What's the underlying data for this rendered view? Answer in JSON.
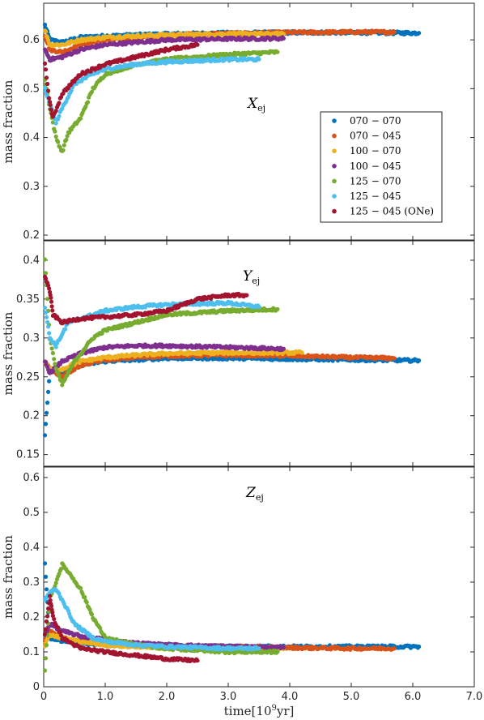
{
  "chart_data": [
    {
      "type": "scatter",
      "panel": "top",
      "annotation": {
        "base": "X",
        "sub": "ej"
      },
      "ylabel": "mass fraction",
      "ylim": [
        0.19,
        0.675
      ],
      "yticks": [
        0.2,
        0.3,
        0.4,
        0.5,
        0.6
      ],
      "xlim": [
        0,
        7
      ],
      "xticks": [
        "0",
        "1.0",
        "2.0",
        "3.0",
        "4.0",
        "5.0",
        "6.0",
        "7.0"
      ],
      "show_xticklabels": false,
      "legend": "inside-right",
      "series": [
        {
          "name": "070 − 070",
          "color": "#0072BD",
          "x": [
            0.02,
            0.1,
            0.3,
            0.6,
            1.0,
            1.5,
            2.0,
            3.0,
            4.0,
            5.0,
            6.1
          ],
          "y": [
            0.63,
            0.6,
            0.595,
            0.605,
            0.608,
            0.61,
            0.612,
            0.614,
            0.615,
            0.615,
            0.614
          ]
        },
        {
          "name": "070 − 045",
          "color": "#D95319",
          "x": [
            0.02,
            0.1,
            0.3,
            0.6,
            1.0,
            1.5,
            2.0,
            3.0,
            4.0,
            5.0,
            5.7
          ],
          "y": [
            0.61,
            0.58,
            0.575,
            0.59,
            0.6,
            0.605,
            0.61,
            0.613,
            0.615,
            0.616,
            0.616
          ]
        },
        {
          "name": "100 − 070",
          "color": "#EDB120",
          "x": [
            0.02,
            0.1,
            0.3,
            0.6,
            1.0,
            1.5,
            2.0,
            3.0,
            3.9
          ],
          "y": [
            0.62,
            0.59,
            0.59,
            0.6,
            0.605,
            0.608,
            0.61,
            0.612,
            0.612
          ]
        },
        {
          "name": "100 − 045",
          "color": "#7E2F8E",
          "x": [
            0.02,
            0.1,
            0.3,
            0.6,
            1.0,
            1.5,
            2.0,
            3.0,
            3.9
          ],
          "y": [
            0.58,
            0.56,
            0.565,
            0.58,
            0.59,
            0.595,
            0.6,
            0.602,
            0.603
          ]
        },
        {
          "name": "125 − 070",
          "color": "#77AC30",
          "x": [
            0.02,
            0.1,
            0.2,
            0.3,
            0.4,
            0.6,
            0.8,
            1.0,
            1.5,
            2.0,
            3.0,
            3.8
          ],
          "y": [
            0.52,
            0.46,
            0.4,
            0.37,
            0.41,
            0.44,
            0.5,
            0.53,
            0.55,
            0.56,
            0.57,
            0.575
          ]
        },
        {
          "name": "125 − 045",
          "color": "#4DBEEE",
          "x": [
            0.02,
            0.1,
            0.2,
            0.3,
            0.5,
            0.8,
            1.0,
            1.5,
            2.0,
            3.0,
            3.5
          ],
          "y": [
            0.5,
            0.47,
            0.43,
            0.46,
            0.51,
            0.53,
            0.54,
            0.55,
            0.555,
            0.56,
            0.56
          ]
        },
        {
          "name": "125 − 045 (ONe)",
          "color": "#A2142F",
          "x": [
            0.02,
            0.1,
            0.15,
            0.3,
            0.6,
            1.0,
            1.5,
            2.0,
            2.5
          ],
          "y": [
            0.55,
            0.47,
            0.44,
            0.49,
            0.53,
            0.55,
            0.565,
            0.58,
            0.59
          ]
        }
      ]
    },
    {
      "type": "scatter",
      "panel": "middle",
      "annotation": {
        "base": "Y",
        "sub": "ej"
      },
      "ylabel": "mass fraction",
      "ylim": [
        0.135,
        0.425
      ],
      "yticks": [
        0.15,
        0.2,
        0.25,
        0.3,
        0.35,
        0.4
      ],
      "xlim": [
        0,
        7
      ],
      "show_xticklabels": false,
      "series": [
        {
          "name": "070 − 070",
          "color": "#0072BD",
          "x": [
            0.02,
            0.1,
            0.3,
            0.6,
            1.0,
            1.5,
            2.0,
            3.0,
            4.0,
            5.0,
            6.1
          ],
          "y": [
            0.175,
            0.26,
            0.255,
            0.265,
            0.27,
            0.272,
            0.274,
            0.274,
            0.273,
            0.272,
            0.271
          ]
        },
        {
          "name": "070 − 045",
          "color": "#D95319",
          "x": [
            0.02,
            0.1,
            0.3,
            0.6,
            1.0,
            1.5,
            2.0,
            3.0,
            4.0,
            5.0,
            5.7
          ],
          "y": [
            0.27,
            0.26,
            0.25,
            0.265,
            0.272,
            0.275,
            0.277,
            0.278,
            0.277,
            0.275,
            0.274
          ]
        },
        {
          "name": "100 − 070",
          "color": "#EDB120",
          "x": [
            0.02,
            0.1,
            0.3,
            0.6,
            1.0,
            1.5,
            2.0,
            3.0,
            4.2
          ],
          "y": [
            0.27,
            0.26,
            0.26,
            0.27,
            0.275,
            0.278,
            0.28,
            0.281,
            0.281
          ]
        },
        {
          "name": "100 − 045",
          "color": "#7E2F8E",
          "x": [
            0.02,
            0.1,
            0.3,
            0.6,
            1.0,
            1.5,
            2.0,
            3.0,
            3.9
          ],
          "y": [
            0.27,
            0.255,
            0.27,
            0.28,
            0.288,
            0.29,
            0.29,
            0.288,
            0.286
          ]
        },
        {
          "name": "125 − 070",
          "color": "#77AC30",
          "x": [
            0.02,
            0.1,
            0.2,
            0.3,
            0.5,
            0.8,
            1.0,
            1.5,
            2.0,
            3.0,
            3.8
          ],
          "y": [
            0.4,
            0.3,
            0.26,
            0.24,
            0.27,
            0.3,
            0.31,
            0.32,
            0.33,
            0.335,
            0.337
          ]
        },
        {
          "name": "125 − 045",
          "color": "#4DBEEE",
          "x": [
            0.02,
            0.1,
            0.2,
            0.4,
            0.8,
            1.0,
            1.5,
            2.0,
            3.0,
            3.5
          ],
          "y": [
            0.34,
            0.3,
            0.29,
            0.32,
            0.33,
            0.335,
            0.34,
            0.343,
            0.345,
            0.34
          ]
        },
        {
          "name": "125 − 045 (ONe)",
          "color": "#A2142F",
          "x": [
            0.02,
            0.1,
            0.15,
            0.3,
            0.6,
            1.0,
            1.5,
            2.0,
            2.5,
            3.0,
            3.3
          ],
          "y": [
            0.38,
            0.36,
            0.33,
            0.32,
            0.325,
            0.327,
            0.33,
            0.335,
            0.35,
            0.355,
            0.355
          ]
        }
      ]
    },
    {
      "type": "scatter",
      "panel": "bottom",
      "annotation": {
        "base": "Z",
        "sub": "ej"
      },
      "ylabel": "mass fraction",
      "xlabel": {
        "base": "time[10",
        "sup": "9",
        "unit": "yr]"
      },
      "ylim": [
        0,
        0.63
      ],
      "yticks": [
        0,
        0.1,
        0.2,
        0.3,
        0.4,
        0.5,
        0.6
      ],
      "xlim": [
        0,
        7
      ],
      "xticks": [
        "0",
        "1.0",
        "2.0",
        "3.0",
        "4.0",
        "5.0",
        "6.0",
        "7.0"
      ],
      "show_xticklabels": true,
      "series": [
        {
          "name": "070 − 070",
          "color": "#0072BD",
          "x": [
            0.02,
            0.1,
            0.3,
            0.6,
            1.0,
            1.5,
            2.0,
            3.0,
            4.0,
            5.0,
            6.1
          ],
          "y": [
            0.35,
            0.14,
            0.13,
            0.125,
            0.12,
            0.118,
            0.117,
            0.116,
            0.115,
            0.115,
            0.115
          ]
        },
        {
          "name": "070 − 045",
          "color": "#D95319",
          "x": [
            0.02,
            0.1,
            0.3,
            0.6,
            1.0,
            1.5,
            2.0,
            3.0,
            4.0,
            5.0,
            5.7
          ],
          "y": [
            0.13,
            0.16,
            0.14,
            0.13,
            0.125,
            0.12,
            0.117,
            0.115,
            0.112,
            0.11,
            0.11
          ]
        },
        {
          "name": "100 − 070",
          "color": "#EDB120",
          "x": [
            0.02,
            0.1,
            0.3,
            0.6,
            1.0,
            1.5,
            2.0,
            3.0,
            3.9
          ],
          "y": [
            0.12,
            0.15,
            0.14,
            0.13,
            0.12,
            0.115,
            0.112,
            0.11,
            0.108
          ]
        },
        {
          "name": "100 − 045",
          "color": "#7E2F8E",
          "x": [
            0.02,
            0.1,
            0.3,
            0.6,
            1.0,
            1.5,
            2.0,
            3.0,
            3.9
          ],
          "y": [
            0.15,
            0.18,
            0.16,
            0.145,
            0.135,
            0.125,
            0.12,
            0.115,
            0.112
          ]
        },
        {
          "name": "125 − 070",
          "color": "#77AC30",
          "x": [
            0.02,
            0.1,
            0.2,
            0.3,
            0.4,
            0.6,
            0.8,
            1.0,
            1.5,
            2.0,
            3.0,
            3.8
          ],
          "y": [
            0.05,
            0.25,
            0.3,
            0.35,
            0.33,
            0.28,
            0.2,
            0.14,
            0.12,
            0.11,
            0.1,
            0.1
          ]
        },
        {
          "name": "125 − 045",
          "color": "#4DBEEE",
          "x": [
            0.02,
            0.1,
            0.2,
            0.3,
            0.5,
            0.8,
            1.0,
            1.5,
            2.0,
            3.0,
            3.5
          ],
          "y": [
            0.25,
            0.27,
            0.28,
            0.25,
            0.18,
            0.14,
            0.13,
            0.12,
            0.115,
            0.11,
            0.11
          ]
        },
        {
          "name": "125 − 045 (ONe)",
          "color": "#A2142F",
          "x": [
            0.02,
            0.1,
            0.15,
            0.3,
            0.6,
            1.0,
            1.5,
            2.0,
            2.5
          ],
          "y": [
            0.15,
            0.26,
            0.2,
            0.14,
            0.11,
            0.1,
            0.09,
            0.08,
            0.075
          ]
        }
      ]
    }
  ]
}
